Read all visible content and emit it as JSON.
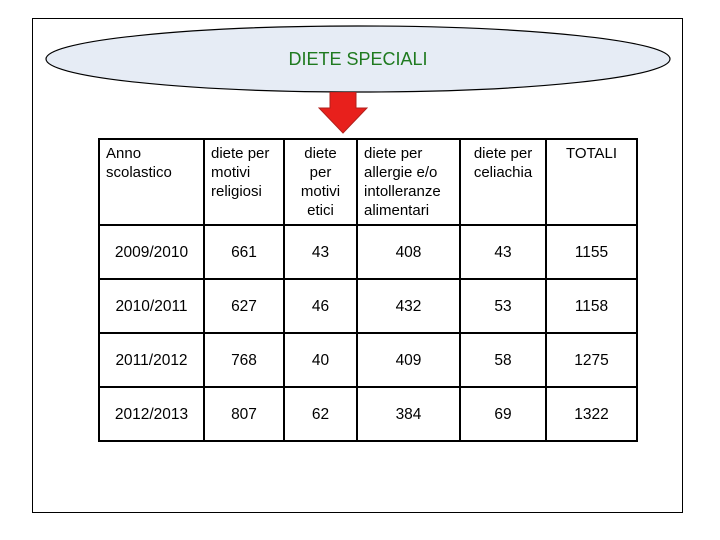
{
  "title": "DIETE SPECIALI",
  "colors": {
    "title": "#1f7a1f",
    "ellipse_fill": "#e6ecf5",
    "arrow_fill": "#e8201c",
    "arrow_stroke": "#b0201c"
  },
  "table": {
    "headers": [
      [
        "Anno",
        "scolastico"
      ],
      [
        "diete per",
        "motivi",
        "religiosi"
      ],
      [
        "diete",
        "per",
        "motivi",
        "etici"
      ],
      [
        "diete per",
        "allergie e/o",
        "intolleranze",
        "alimentari"
      ],
      [
        "diete per",
        "celiachia"
      ],
      [
        "TOTALI"
      ]
    ],
    "rows": [
      [
        "2009/2010",
        "661",
        "43",
        "408",
        "43",
        "1155"
      ],
      [
        "2010/2011",
        "627",
        "46",
        "432",
        "53",
        "1158"
      ],
      [
        "2011/2012",
        "768",
        "40",
        "409",
        "58",
        "1275"
      ],
      [
        "2012/2013",
        "807",
        "62",
        "384",
        "69",
        "1322"
      ]
    ]
  },
  "chart_data": {
    "type": "table",
    "title": "DIETE SPECIALI",
    "columns": [
      "Anno scolastico",
      "diete per motivi religiosi",
      "diete per motivi etici",
      "diete per allergie e/o intolleranze alimentari",
      "diete per celiachia",
      "TOTALI"
    ],
    "rows": [
      [
        "2009/2010",
        661,
        43,
        408,
        43,
        1155
      ],
      [
        "2010/2011",
        627,
        46,
        432,
        53,
        1158
      ],
      [
        "2011/2012",
        768,
        40,
        409,
        58,
        1275
      ],
      [
        "2012/2013",
        807,
        62,
        384,
        69,
        1322
      ]
    ]
  }
}
